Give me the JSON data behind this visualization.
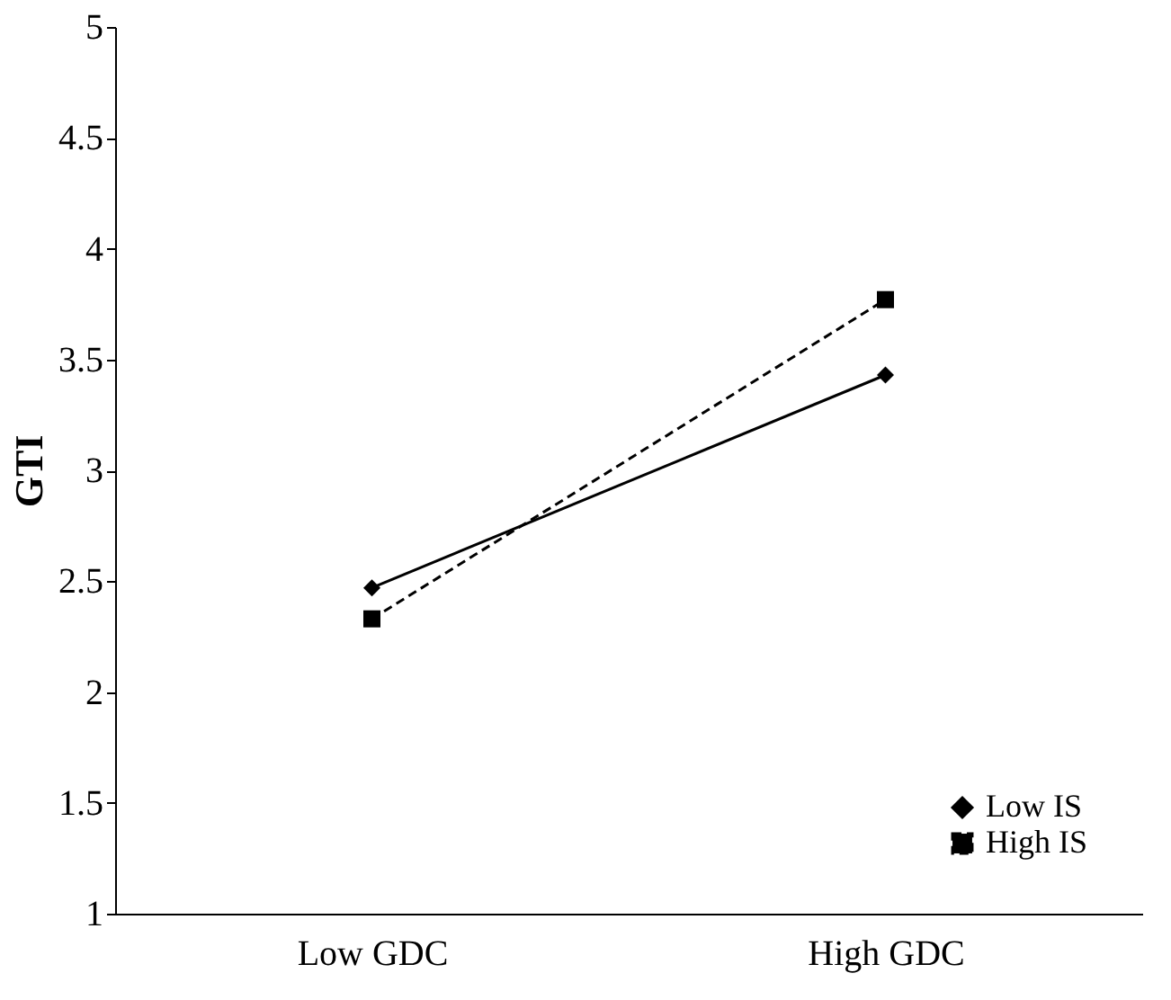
{
  "chart_data": {
    "type": "line",
    "ylabel": "GTI",
    "categories": [
      "Low GDC",
      "High GDC"
    ],
    "series": [
      {
        "name": "Low IS",
        "color": "#000000",
        "values": [
          2.47,
          3.43
        ],
        "marker": "diamond",
        "line_style": "solid"
      },
      {
        "name": "High IS",
        "color": "#000000",
        "values": [
          2.33,
          3.77
        ],
        "marker": "square",
        "line_style": "dashed"
      }
    ],
    "ylim": [
      1,
      5
    ],
    "yticks": [
      1,
      1.5,
      2,
      2.5,
      3,
      3.5,
      4,
      4.5,
      5
    ],
    "grid": false,
    "legend": "bottom right"
  }
}
